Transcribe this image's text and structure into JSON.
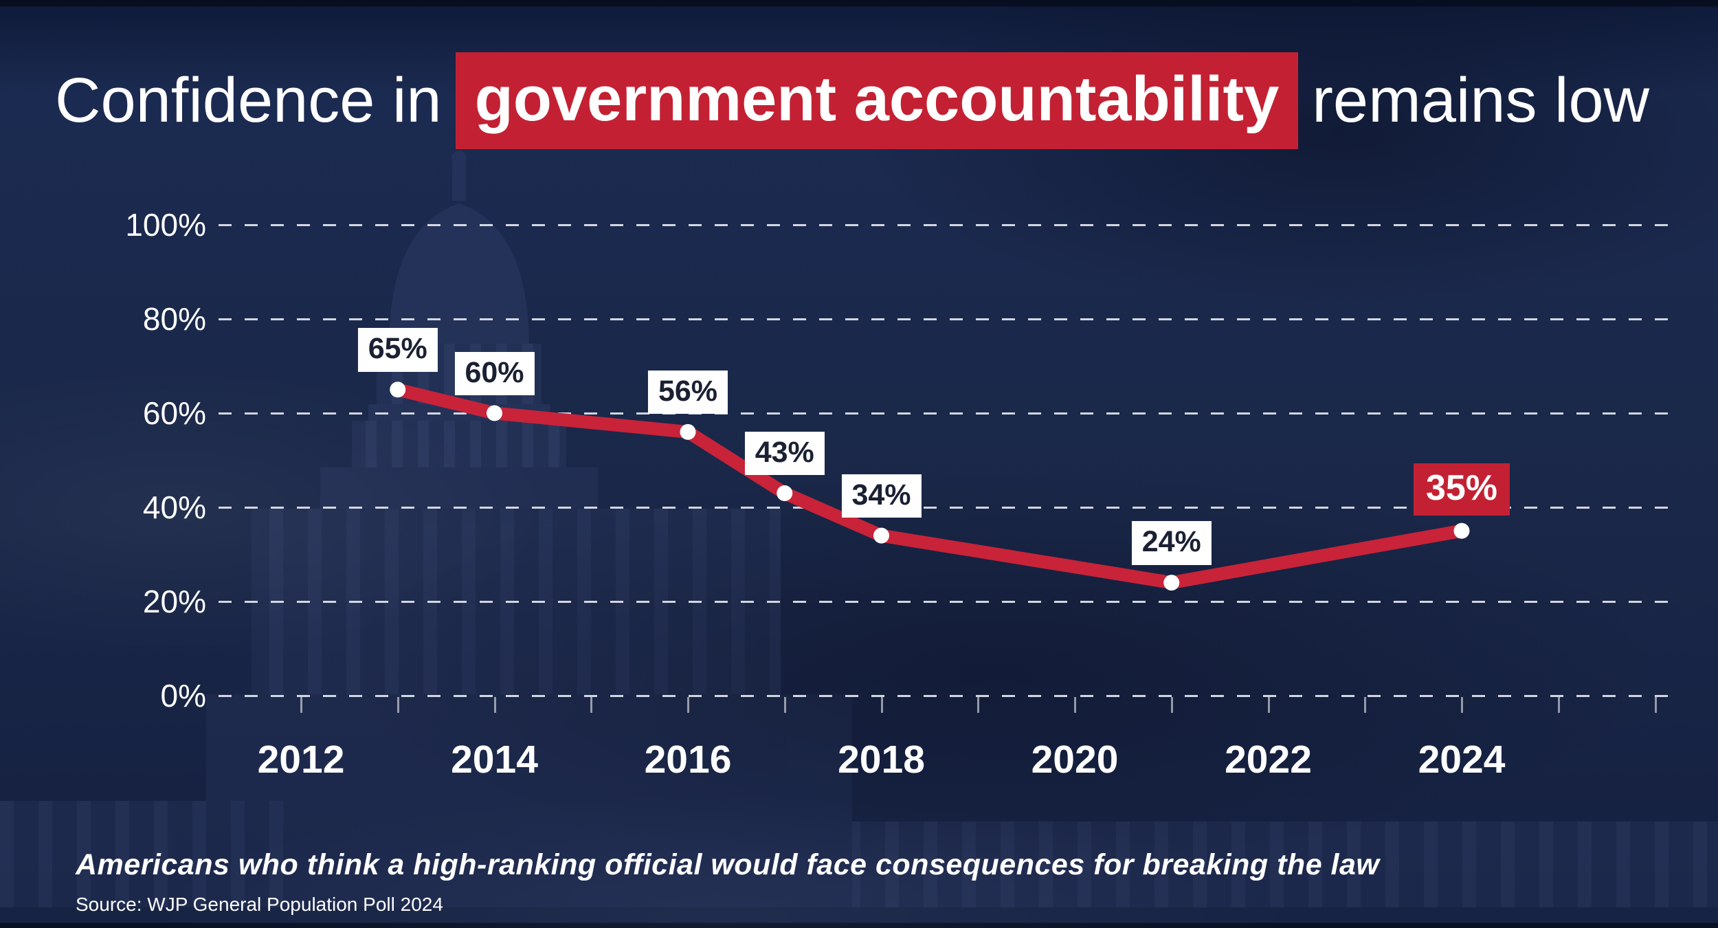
{
  "title": {
    "prefix": "Confidence in",
    "highlight": "government accountability",
    "suffix": "remains low"
  },
  "subtitle": "Americans who think a high-ranking official would face consequences for breaking the law",
  "source": "Source: WJP General Population Poll 2024",
  "background": {
    "image_subject": "US Capitol building at night, faint silhouette"
  },
  "colors": {
    "background_navy": "#1a2748",
    "accent_red": "#c32133",
    "line_red": "#c82339",
    "label_box_bg": "#ffffff",
    "label_text_dark": "#1b2133",
    "grid_dash": "#eceff6",
    "text_white": "#ffffff"
  },
  "chart_data": {
    "type": "line",
    "title": "Confidence in government accountability remains low",
    "x": [
      2013,
      2014,
      2016,
      2017,
      2018,
      2021,
      2024
    ],
    "values": [
      65,
      60,
      56,
      43,
      34,
      24,
      35
    ],
    "point_labels": [
      "65%",
      "60%",
      "56%",
      "43%",
      "34%",
      "24%",
      "35%"
    ],
    "highlight_last_point": true,
    "y_tick_labels": [
      "100%",
      "80%",
      "60%",
      "40%",
      "20%",
      "0%"
    ],
    "y_tick_values": [
      100,
      80,
      60,
      40,
      20,
      0
    ],
    "x_tick_labels": [
      "2012",
      "2014",
      "2016",
      "2018",
      "2020",
      "2022",
      "2024"
    ],
    "x_tick_values": [
      2012,
      2014,
      2016,
      2018,
      2020,
      2022,
      2024
    ],
    "minor_x_ticks_every_year_from": 2012,
    "minor_x_ticks_every_year_to": 2026,
    "xlim": [
      2011.1,
      2026.3
    ],
    "ylim": [
      0,
      100
    ],
    "grid": "horizontal dashed",
    "legend": "none",
    "line_color": "#c82339",
    "marker_color": "#ffffff"
  }
}
